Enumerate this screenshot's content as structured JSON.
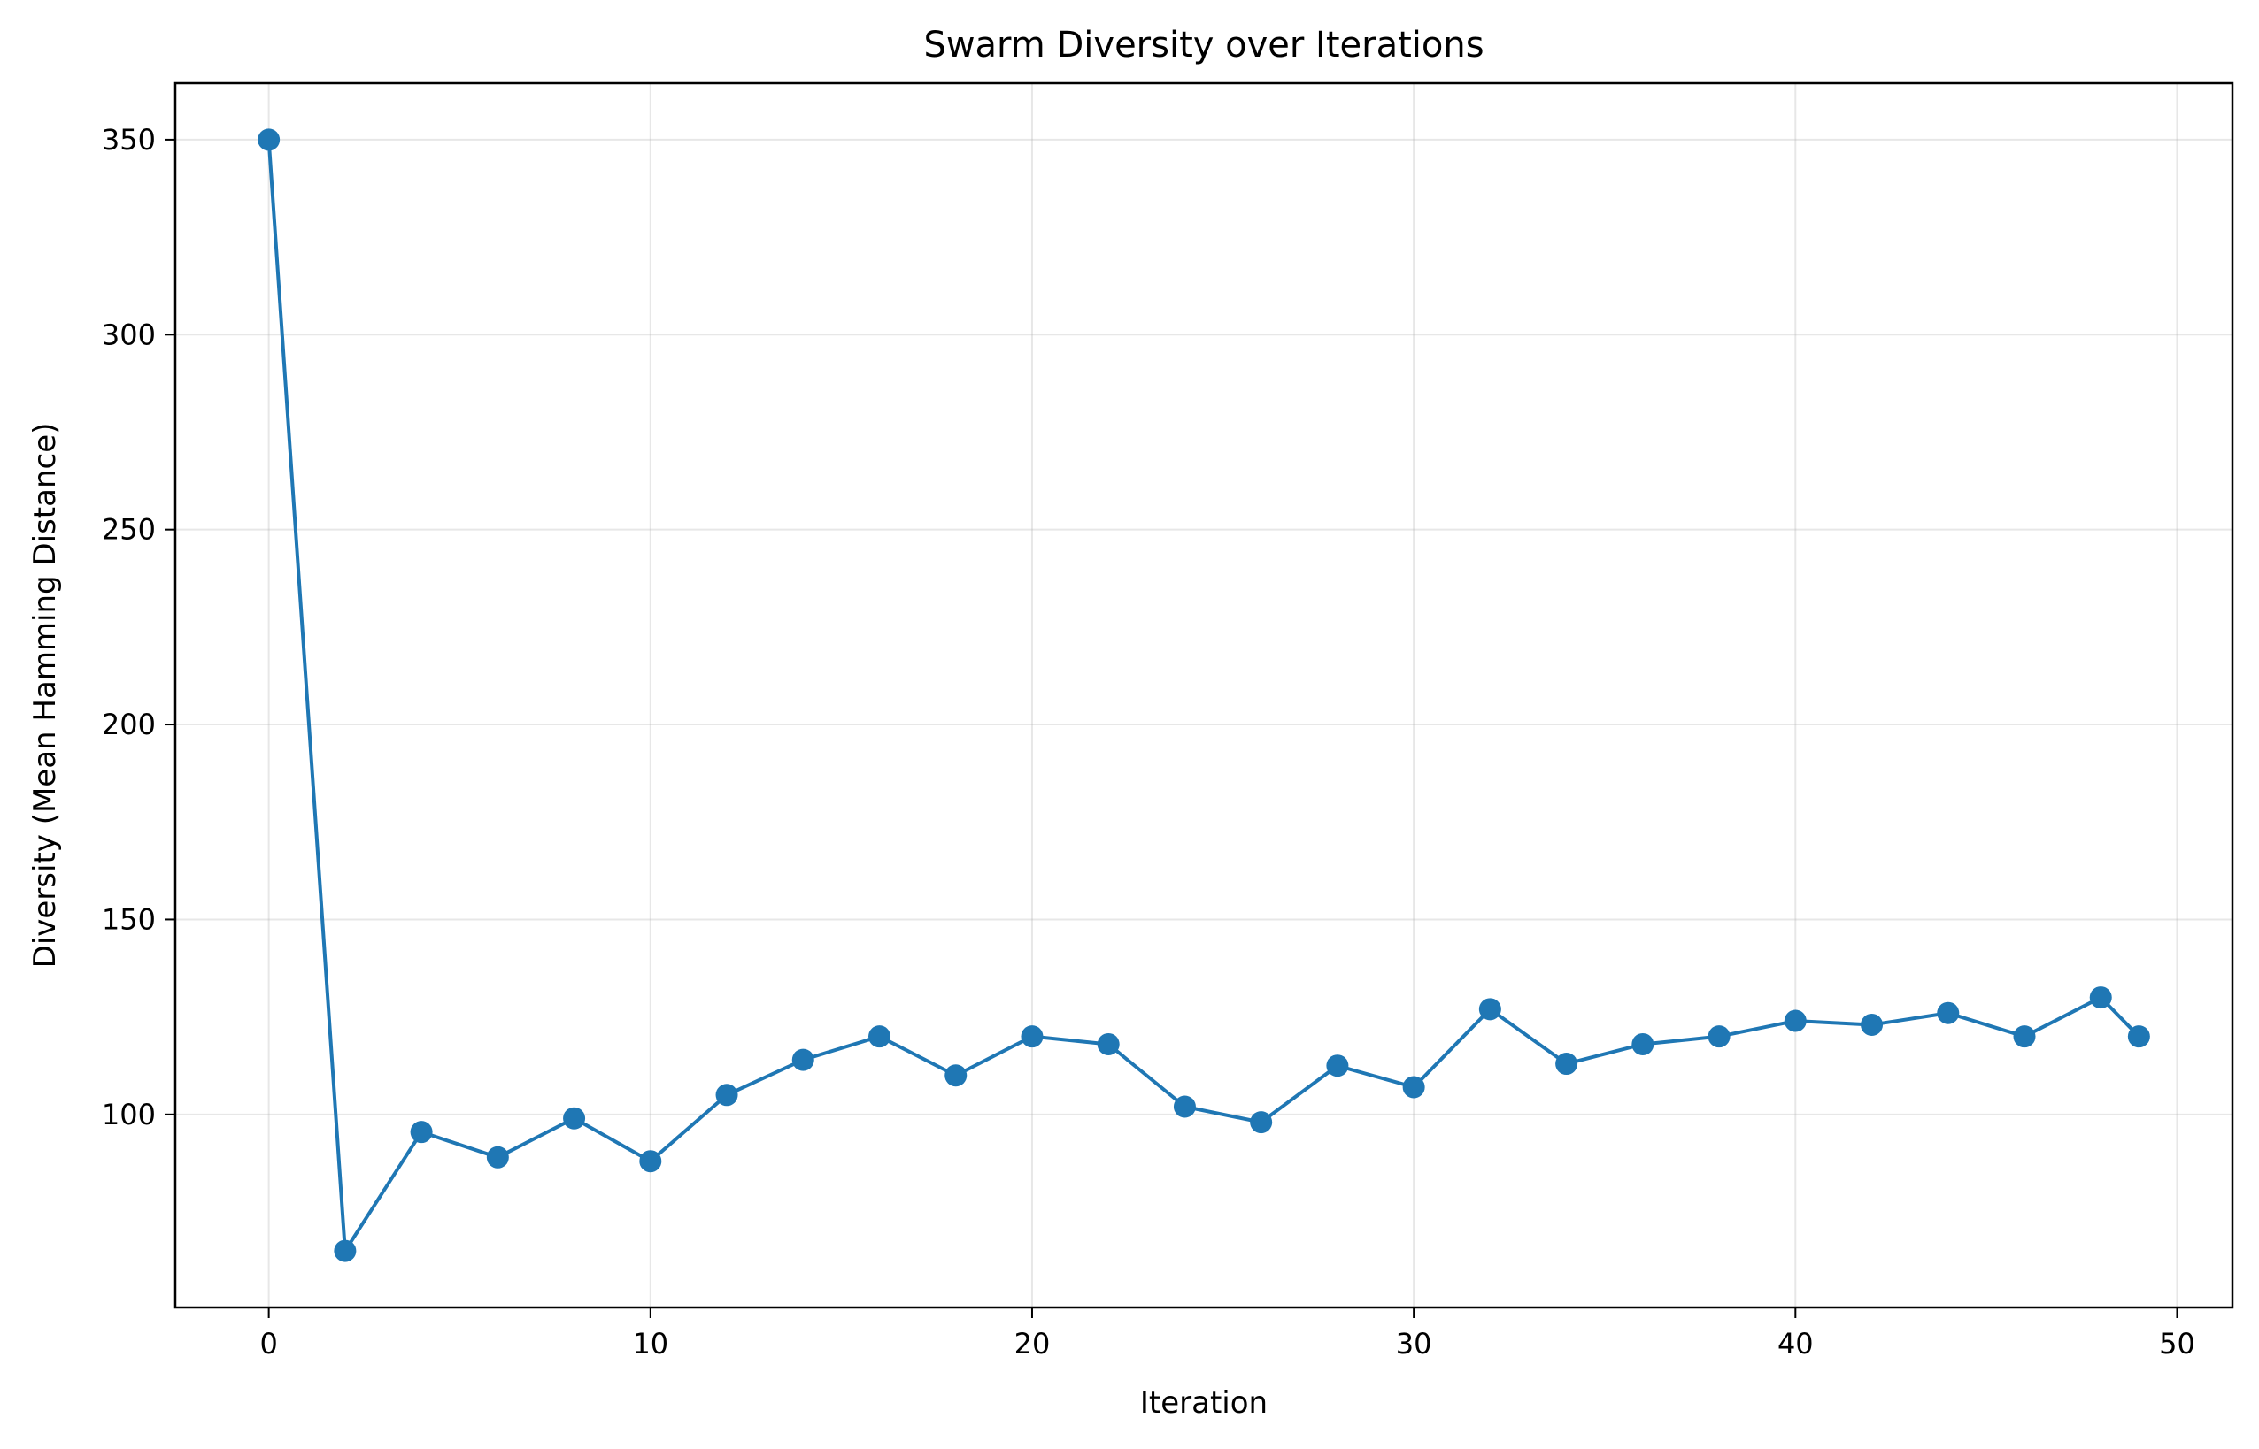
{
  "chart_data": {
    "type": "line",
    "title": "Swarm Diversity over Iterations",
    "xlabel": "Iteration",
    "ylabel": "Diversity (Mean Hamming Distance)",
    "xlim": [
      -2.45,
      51.45
    ],
    "ylim": [
      50.5,
      364.5
    ],
    "xticks": [
      0,
      10,
      20,
      30,
      40,
      50
    ],
    "yticks": [
      100,
      150,
      200,
      250,
      300,
      350
    ],
    "grid": true,
    "legend": "none",
    "color": "#1f77b4",
    "series": [
      {
        "x": [
          0,
          2,
          4,
          6,
          8,
          10,
          12,
          14,
          16,
          18,
          20,
          22,
          24,
          26,
          28,
          30,
          32,
          34,
          36,
          38,
          40,
          42,
          44,
          46,
          48,
          49
        ],
        "y": [
          350,
          65,
          95.5,
          89,
          99,
          88,
          105,
          114,
          120,
          110,
          120,
          118,
          102,
          98,
          112.5,
          107,
          127,
          113,
          118,
          120,
          124,
          123,
          126,
          120,
          130,
          120
        ]
      }
    ]
  }
}
